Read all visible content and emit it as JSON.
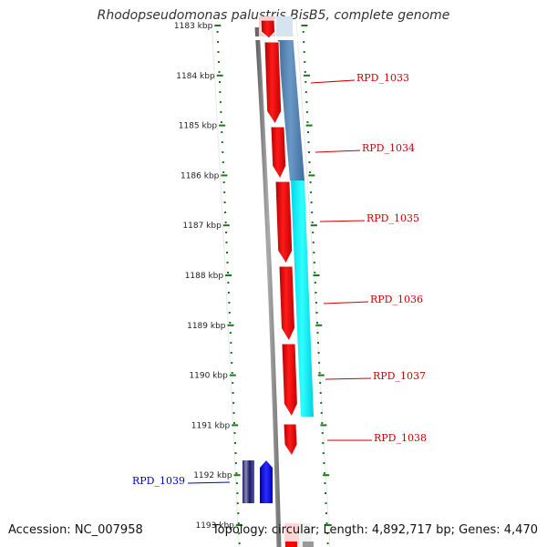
{
  "title": "Rhodopseudomonas palustris BisB5, complete genome",
  "footer": {
    "accession": "Accession: NC_007958",
    "topology": "Topology: circular; Length: 4,892,717 bp; Genes: 4,470"
  },
  "ruler": {
    "ticks": [
      {
        "label": "1183 kbp",
        "faded": true
      },
      {
        "label": "1184 kbp"
      },
      {
        "label": "1185 kbp"
      },
      {
        "label": "1186 kbp"
      },
      {
        "label": "1187 kbp"
      },
      {
        "label": "1188 kbp"
      },
      {
        "label": "1189 kbp"
      },
      {
        "label": "1190 kbp"
      },
      {
        "label": "1191 kbp"
      },
      {
        "label": "1192 kbp"
      },
      {
        "label": "1193 kbp"
      }
    ]
  },
  "genes": [
    {
      "label": "RPD_1033",
      "color": "#cc0000"
    },
    {
      "label": "RPD_1034",
      "color": "#cc0000"
    },
    {
      "label": "RPD_1035",
      "color": "#cc0000"
    },
    {
      "label": "RPD_1036",
      "color": "#cc0000"
    },
    {
      "label": "RPD_1037",
      "color": "#cc0000"
    },
    {
      "label": "RPD_1038",
      "color": "#cc0000"
    },
    {
      "label": "RPD_1039",
      "color": "#0000cc"
    }
  ],
  "colors": {
    "forward_cds": "#ff0000",
    "operon_a": "#4f7faf",
    "operon_b": "#00e5ee",
    "reverse_cds": "#0000ee",
    "backbone": "#888888",
    "ruler_dots": "#1a7a1a"
  }
}
